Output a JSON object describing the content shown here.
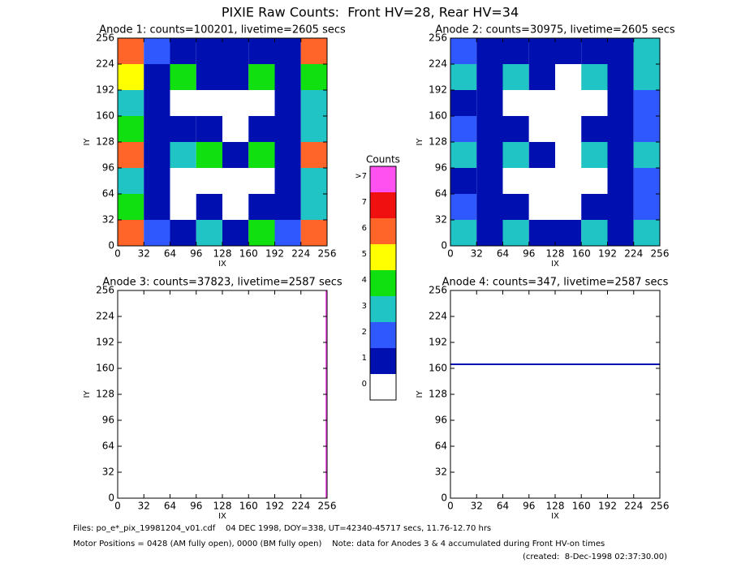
{
  "chart_data": [
    {
      "type": "heatmap",
      "title": "Anode 1: counts=100201, livetime=2605 secs",
      "xlabel": "IX",
      "ylabel": "IY",
      "xlim": [
        0,
        256
      ],
      "ylim": [
        0,
        256
      ],
      "xticks": [
        0,
        32,
        64,
        96,
        128,
        160,
        192,
        224,
        256
      ],
      "yticks": [
        0,
        32,
        64,
        96,
        128,
        160,
        192,
        224,
        256
      ],
      "bins": [
        0,
        32,
        64,
        96,
        128,
        160,
        192,
        224,
        256
      ],
      "levels": [
        [
          6,
          2,
          1,
          3,
          1,
          4,
          2,
          6
        ],
        [
          4,
          1,
          0,
          1,
          0,
          1,
          1,
          3
        ],
        [
          3,
          1,
          0,
          0,
          0,
          0,
          1,
          3
        ],
        [
          6,
          1,
          3,
          4,
          1,
          4,
          1,
          6
        ],
        [
          4,
          1,
          1,
          1,
          0,
          1,
          1,
          3
        ],
        [
          3,
          1,
          0,
          0,
          0,
          0,
          1,
          3
        ],
        [
          5,
          1,
          4,
          1,
          1,
          4,
          1,
          4
        ],
        [
          6,
          2,
          1,
          1,
          1,
          1,
          1,
          6
        ]
      ]
    },
    {
      "type": "heatmap",
      "title": "Anode 2: counts=30975, livetime=2605 secs",
      "xlabel": "IX",
      "ylabel": "IY",
      "xlim": [
        0,
        256
      ],
      "ylim": [
        0,
        256
      ],
      "xticks": [
        0,
        32,
        64,
        96,
        128,
        160,
        192,
        224,
        256
      ],
      "yticks": [
        0,
        32,
        64,
        96,
        128,
        160,
        192,
        224,
        256
      ],
      "bins": [
        0,
        32,
        64,
        96,
        128,
        160,
        192,
        224,
        256
      ],
      "levels": [
        [
          3,
          1,
          3,
          1,
          1,
          3,
          1,
          3
        ],
        [
          2,
          1,
          1,
          0,
          0,
          1,
          1,
          2
        ],
        [
          1,
          1,
          0,
          0,
          0,
          0,
          1,
          2
        ],
        [
          3,
          1,
          3,
          1,
          0,
          3,
          1,
          3
        ],
        [
          2,
          1,
          1,
          0,
          0,
          1,
          1,
          2
        ],
        [
          1,
          1,
          0,
          0,
          0,
          0,
          1,
          2
        ],
        [
          3,
          1,
          3,
          1,
          0,
          3,
          1,
          3
        ],
        [
          2,
          1,
          1,
          1,
          1,
          1,
          1,
          3
        ]
      ]
    },
    {
      "type": "heatmap",
      "title": "Anode 3: counts=37823, livetime=2587 secs",
      "xlabel": "IX",
      "ylabel": "IY",
      "xlim": [
        0,
        256
      ],
      "ylim": [
        0,
        256
      ],
      "xticks": [
        0,
        32,
        64,
        96,
        128,
        160,
        192,
        224,
        256
      ],
      "yticks": [
        0,
        32,
        64,
        96,
        128,
        160,
        192,
        224,
        256
      ],
      "streak": {
        "axis": "x",
        "at": 255,
        "level": 8
      }
    },
    {
      "type": "heatmap",
      "title": "Anode 4: counts=347, livetime=2587 secs",
      "xlabel": "IX",
      "ylabel": "IY",
      "xlim": [
        0,
        256
      ],
      "ylim": [
        0,
        256
      ],
      "xticks": [
        0,
        32,
        64,
        96,
        128,
        160,
        192,
        224,
        256
      ],
      "yticks": [
        0,
        32,
        64,
        96,
        128,
        160,
        192,
        224,
        256
      ],
      "streak": {
        "axis": "y",
        "at": 165,
        "level": 1
      }
    }
  ],
  "header": {
    "title": "PIXIE Raw Counts:  Front HV=28, Rear HV=34"
  },
  "colorbar": {
    "title": "Counts",
    "levels": [
      {
        "label": "0",
        "color": "#ffffff"
      },
      {
        "label": "1",
        "color": "#0010b0"
      },
      {
        "label": "2",
        "color": "#3058ff"
      },
      {
        "label": "3",
        "color": "#20c4c4"
      },
      {
        "label": "4",
        "color": "#10e010"
      },
      {
        "label": "5",
        "color": "#ffff00"
      },
      {
        "label": "6",
        "color": "#ff6428"
      },
      {
        "label": "7",
        "color": "#f01010"
      },
      {
        "label": ">7",
        "color": "#ff50f0"
      }
    ]
  },
  "footer": {
    "files": "Files: po_e*_pix_19981204_v01.cdf    04 DEC 1998, DOY=338, UT=42340-45717 secs, 11.76-12.70 hrs",
    "motor": "Motor Positions = 0428 (AM fully open), 0000 (BM fully open)    Note: data for Anodes 3 & 4 accumulated during Front HV-on times",
    "created": "(created:  8-Dec-1998 02:37:30.00)"
  }
}
